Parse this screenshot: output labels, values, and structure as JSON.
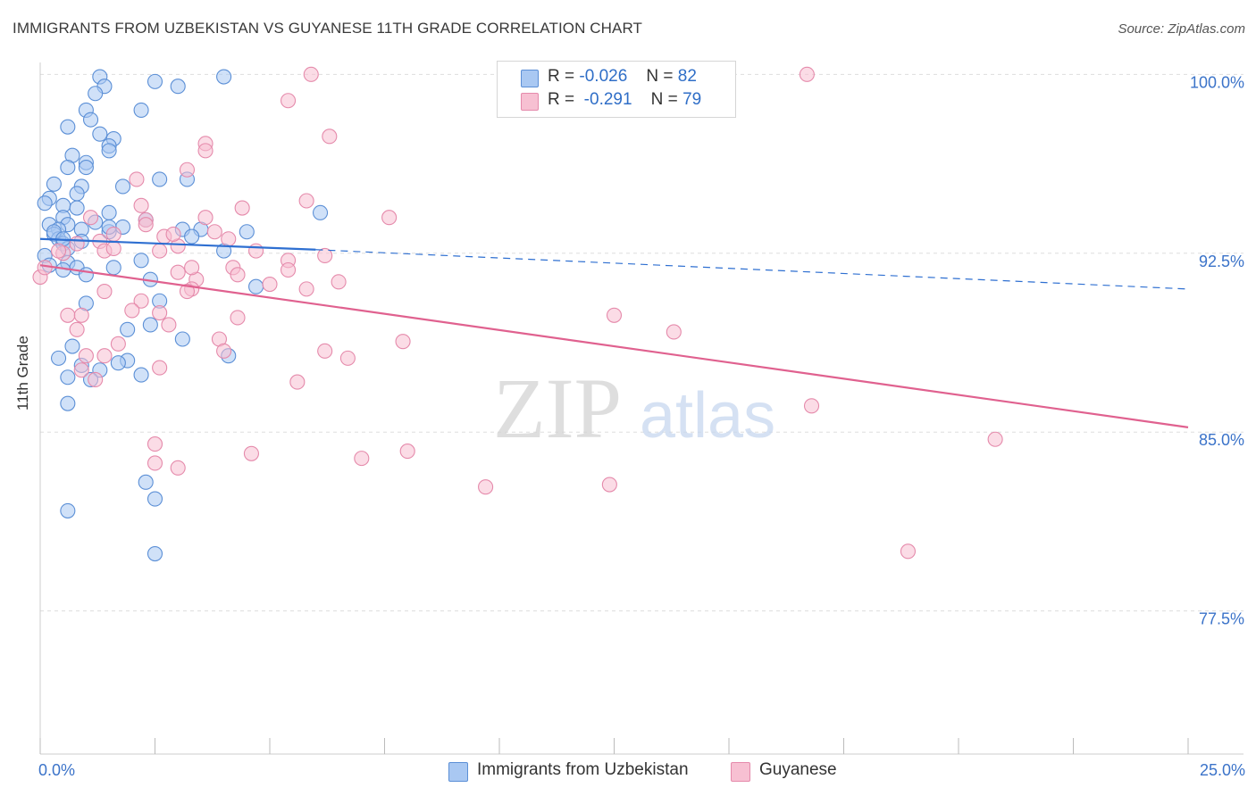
{
  "header": {
    "title": "IMMIGRANTS FROM UZBEKISTAN VS GUYANESE 11TH GRADE CORRELATION CHART",
    "source": "Source: ZipAtlas.com"
  },
  "legend": {
    "rows": [
      {
        "r_label": "R =",
        "r_value": "-0.026",
        "n_label": "N =",
        "n_value": "82",
        "color": "#a9c8f2"
      },
      {
        "r_label": "R =",
        "r_value": "-0.291",
        "n_label": "N =",
        "n_value": "79",
        "color": "#f7b8cc"
      }
    ]
  },
  "bottom_legend": {
    "items": [
      {
        "label": "Immigrants from Uzbekistan",
        "color": "#a9c8f2"
      },
      {
        "label": "Guyanese",
        "color": "#f7b8cc"
      }
    ]
  },
  "watermark": {
    "zip": "ZIP",
    "atlas": "atlas"
  },
  "colors": {
    "blue_fill": "#a9c8f2",
    "blue_stroke": "#5b8fd6",
    "blue_line": "#2e6fd1",
    "pink_fill": "#f7c0d2",
    "pink_stroke": "#e58aab",
    "pink_line": "#e0618f",
    "grid": "#dddddd",
    "tick_label": "#3b73c9"
  },
  "chart_data": {
    "type": "scatter",
    "title": "IMMIGRANTS FROM UZBEKISTAN VS GUYANESE 11TH GRADE CORRELATION CHART",
    "xlabel": "",
    "ylabel": "11th Grade",
    "xlim": [
      0,
      25
    ],
    "ylim": [
      71.5,
      100.5
    ],
    "x_tick_labels": [
      {
        "value": 0,
        "label": "0.0%"
      },
      {
        "value": 25,
        "label": "25.0%"
      }
    ],
    "x_minor_ticks": [
      2.5,
      5,
      7.5,
      10,
      12.5,
      15,
      17.5,
      20,
      22.5
    ],
    "y_ticks": [
      {
        "value": 100,
        "label": "100.0%"
      },
      {
        "value": 92.5,
        "label": "92.5%"
      },
      {
        "value": 85,
        "label": "85.0%"
      },
      {
        "value": 77.5,
        "label": "77.5%"
      }
    ],
    "grid": true,
    "legend_position": "top-center",
    "series": [
      {
        "name": "Immigrants from Uzbekistan",
        "color": "#a9c8f2",
        "trend": {
          "x0": 0,
          "y0": 93.1,
          "x1": 6.0,
          "y1": 92.65,
          "dashed_to_x": 25,
          "dashed_to_y": 91.0
        },
        "points": [
          [
            1.3,
            99.9
          ],
          [
            4.0,
            99.9
          ],
          [
            2.5,
            99.7
          ],
          [
            1.4,
            99.5
          ],
          [
            3.0,
            99.5
          ],
          [
            1.2,
            99.2
          ],
          [
            2.2,
            98.5
          ],
          [
            1.0,
            98.5
          ],
          [
            1.1,
            98.1
          ],
          [
            0.6,
            97.8
          ],
          [
            1.3,
            97.5
          ],
          [
            1.6,
            97.3
          ],
          [
            1.5,
            97.0
          ],
          [
            1.5,
            96.8
          ],
          [
            0.7,
            96.6
          ],
          [
            1.0,
            96.3
          ],
          [
            1.0,
            96.1
          ],
          [
            0.6,
            96.1
          ],
          [
            2.6,
            95.6
          ],
          [
            3.2,
            95.6
          ],
          [
            0.3,
            95.4
          ],
          [
            0.9,
            95.3
          ],
          [
            1.8,
            95.3
          ],
          [
            0.8,
            95.0
          ],
          [
            0.2,
            94.8
          ],
          [
            0.1,
            94.6
          ],
          [
            0.5,
            94.5
          ],
          [
            0.8,
            94.4
          ],
          [
            6.1,
            94.2
          ],
          [
            1.5,
            94.2
          ],
          [
            0.5,
            94.0
          ],
          [
            2.3,
            93.9
          ],
          [
            1.2,
            93.8
          ],
          [
            0.6,
            93.7
          ],
          [
            0.2,
            93.7
          ],
          [
            1.8,
            93.6
          ],
          [
            0.4,
            93.5
          ],
          [
            0.9,
            93.5
          ],
          [
            3.1,
            93.5
          ],
          [
            3.5,
            93.5
          ],
          [
            4.5,
            93.4
          ],
          [
            1.5,
            93.4
          ],
          [
            0.3,
            93.3
          ],
          [
            3.3,
            93.2
          ],
          [
            0.4,
            93.1
          ],
          [
            0.9,
            93.0
          ],
          [
            0.5,
            92.9
          ],
          [
            0.6,
            92.7
          ],
          [
            4.0,
            92.6
          ],
          [
            0.1,
            92.4
          ],
          [
            2.2,
            92.2
          ],
          [
            0.6,
            92.1
          ],
          [
            0.8,
            91.9
          ],
          [
            1.6,
            91.9
          ],
          [
            0.5,
            91.8
          ],
          [
            1.0,
            91.6
          ],
          [
            2.4,
            91.4
          ],
          [
            4.7,
            91.1
          ],
          [
            2.6,
            90.5
          ],
          [
            1.0,
            90.4
          ],
          [
            2.4,
            89.5
          ],
          [
            1.9,
            89.3
          ],
          [
            3.1,
            88.9
          ],
          [
            0.7,
            88.6
          ],
          [
            0.4,
            88.1
          ],
          [
            4.1,
            88.2
          ],
          [
            1.9,
            88.0
          ],
          [
            1.7,
            87.9
          ],
          [
            0.9,
            87.8
          ],
          [
            1.3,
            87.6
          ],
          [
            2.2,
            87.4
          ],
          [
            0.6,
            87.3
          ],
          [
            1.1,
            87.2
          ],
          [
            0.6,
            86.2
          ],
          [
            2.3,
            82.9
          ],
          [
            2.5,
            82.2
          ],
          [
            0.6,
            81.7
          ],
          [
            2.5,
            79.9
          ],
          [
            1.5,
            93.6
          ],
          [
            0.3,
            93.4
          ],
          [
            0.2,
            92.0
          ],
          [
            0.5,
            93.1
          ]
        ]
      },
      {
        "name": "Guyanese",
        "color": "#f7b8cc",
        "trend": {
          "x0": 0,
          "y0": 92.0,
          "x1": 25,
          "y1": 85.2
        },
        "points": [
          [
            5.9,
            100.0
          ],
          [
            16.7,
            100.0
          ],
          [
            5.4,
            98.9
          ],
          [
            6.3,
            97.4
          ],
          [
            3.6,
            97.1
          ],
          [
            3.6,
            96.8
          ],
          [
            3.2,
            96.0
          ],
          [
            2.1,
            95.6
          ],
          [
            5.8,
            94.7
          ],
          [
            2.2,
            94.5
          ],
          [
            4.4,
            94.4
          ],
          [
            3.6,
            94.0
          ],
          [
            7.6,
            94.0
          ],
          [
            1.1,
            94.0
          ],
          [
            2.3,
            93.9
          ],
          [
            2.3,
            93.7
          ],
          [
            3.8,
            93.4
          ],
          [
            1.6,
            93.3
          ],
          [
            2.7,
            93.2
          ],
          [
            1.3,
            93.0
          ],
          [
            3.0,
            92.8
          ],
          [
            4.7,
            92.6
          ],
          [
            2.6,
            92.6
          ],
          [
            1.4,
            92.6
          ],
          [
            0.5,
            92.5
          ],
          [
            6.2,
            92.4
          ],
          [
            5.4,
            92.2
          ],
          [
            4.2,
            91.9
          ],
          [
            5.4,
            91.8
          ],
          [
            3.0,
            91.7
          ],
          [
            4.3,
            91.6
          ],
          [
            3.4,
            91.4
          ],
          [
            6.5,
            91.3
          ],
          [
            5.0,
            91.2
          ],
          [
            5.8,
            91.0
          ],
          [
            3.3,
            91.0
          ],
          [
            3.2,
            90.9
          ],
          [
            1.4,
            90.9
          ],
          [
            2.2,
            90.5
          ],
          [
            2.0,
            90.1
          ],
          [
            2.6,
            90.0
          ],
          [
            0.6,
            89.9
          ],
          [
            0.9,
            89.9
          ],
          [
            12.5,
            89.9
          ],
          [
            4.3,
            89.8
          ],
          [
            2.8,
            89.5
          ],
          [
            0.8,
            89.3
          ],
          [
            13.8,
            89.2
          ],
          [
            3.9,
            88.9
          ],
          [
            7.9,
            88.8
          ],
          [
            1.7,
            88.7
          ],
          [
            6.2,
            88.4
          ],
          [
            4.0,
            88.4
          ],
          [
            1.0,
            88.2
          ],
          [
            1.4,
            88.2
          ],
          [
            6.7,
            88.1
          ],
          [
            2.6,
            87.7
          ],
          [
            0.9,
            87.6
          ],
          [
            1.2,
            87.2
          ],
          [
            5.6,
            87.1
          ],
          [
            16.8,
            86.1
          ],
          [
            20.8,
            84.7
          ],
          [
            2.5,
            84.5
          ],
          [
            4.6,
            84.1
          ],
          [
            8.0,
            84.2
          ],
          [
            7.0,
            83.9
          ],
          [
            2.5,
            83.7
          ],
          [
            3.0,
            83.5
          ],
          [
            9.7,
            82.7
          ],
          [
            12.4,
            82.8
          ],
          [
            18.9,
            80.0
          ],
          [
            0.0,
            91.5
          ],
          [
            0.4,
            92.6
          ],
          [
            0.1,
            91.9
          ],
          [
            0.8,
            92.9
          ],
          [
            1.6,
            92.7
          ],
          [
            3.3,
            91.9
          ],
          [
            2.9,
            93.3
          ],
          [
            4.1,
            93.1
          ]
        ]
      }
    ]
  }
}
